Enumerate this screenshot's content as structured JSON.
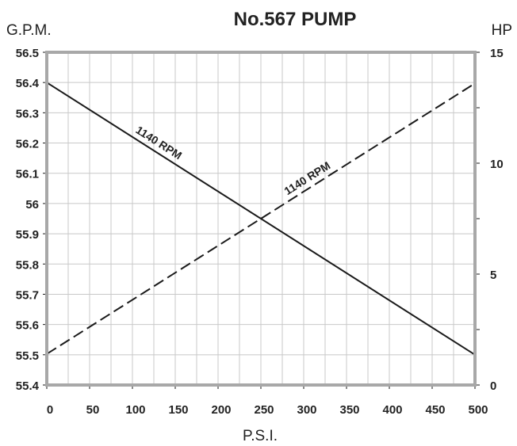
{
  "chart_data": {
    "type": "line",
    "title": "No.567 PUMP",
    "xlabel": "P.S.I.",
    "ylabel_left": "G.P.M.",
    "ylabel_right": "HP",
    "x_ticks": [
      "0",
      "50",
      "100",
      "150",
      "200",
      "250",
      "300",
      "350",
      "400",
      "450",
      "500"
    ],
    "y_left_ticks": [
      "55.4",
      "55.5",
      "55.6",
      "55.7",
      "55.8",
      "55.9",
      "56",
      "56.1",
      "56.2",
      "56.3",
      "56.4",
      "56.5"
    ],
    "y_right_ticks": [
      "0",
      "5",
      "10",
      "15"
    ],
    "xlim": [
      0,
      500
    ],
    "ylim_left": [
      55.4,
      56.5
    ],
    "ylim_right": [
      0,
      15
    ],
    "grid": true,
    "series": [
      {
        "name": "1140 RPM",
        "axis": "left",
        "style": "solid",
        "color": "#1a1a1a",
        "x": [
          0,
          500
        ],
        "y": [
          56.4,
          55.5
        ]
      },
      {
        "name": "1140 RPM",
        "axis": "right",
        "style": "dashed",
        "color": "#1a1a1a",
        "x": [
          0,
          500
        ],
        "y": [
          1.4,
          13.6
        ]
      }
    ],
    "colors": {
      "frame": "#a8a8a8",
      "grid": "#c8c8c8",
      "ink": "#1a1a1a"
    }
  }
}
